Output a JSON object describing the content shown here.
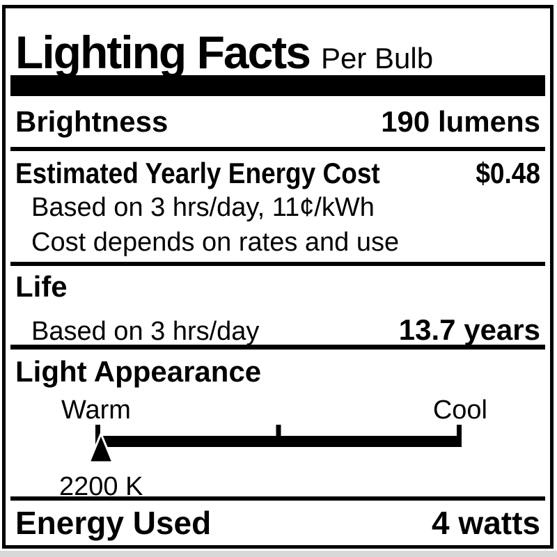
{
  "header": {
    "title": "Lighting Facts",
    "subtitle": "Per Bulb"
  },
  "brightness": {
    "label": "Brightness",
    "value": "190 lumens"
  },
  "energy_cost": {
    "label": "Estimated Yearly Energy Cost",
    "value": "$0.48",
    "notes": [
      "Based on 3 hrs/day, 11¢/kWh",
      "Cost depends on rates and use"
    ]
  },
  "life": {
    "label": "Life",
    "basis": "Based on 3 hrs/day",
    "value": "13.7 years"
  },
  "light_appearance": {
    "label": "Light Appearance",
    "warm": "Warm",
    "cool": "Cool",
    "temperature": "2200 K",
    "marker_position_pct": 1.5,
    "scale_ticks_pct": [
      0,
      50,
      100
    ]
  },
  "energy_used": {
    "label": "Energy Used",
    "value": "4 watts"
  },
  "colors": {
    "ink": "#000000",
    "paper": "#ffffff"
  }
}
